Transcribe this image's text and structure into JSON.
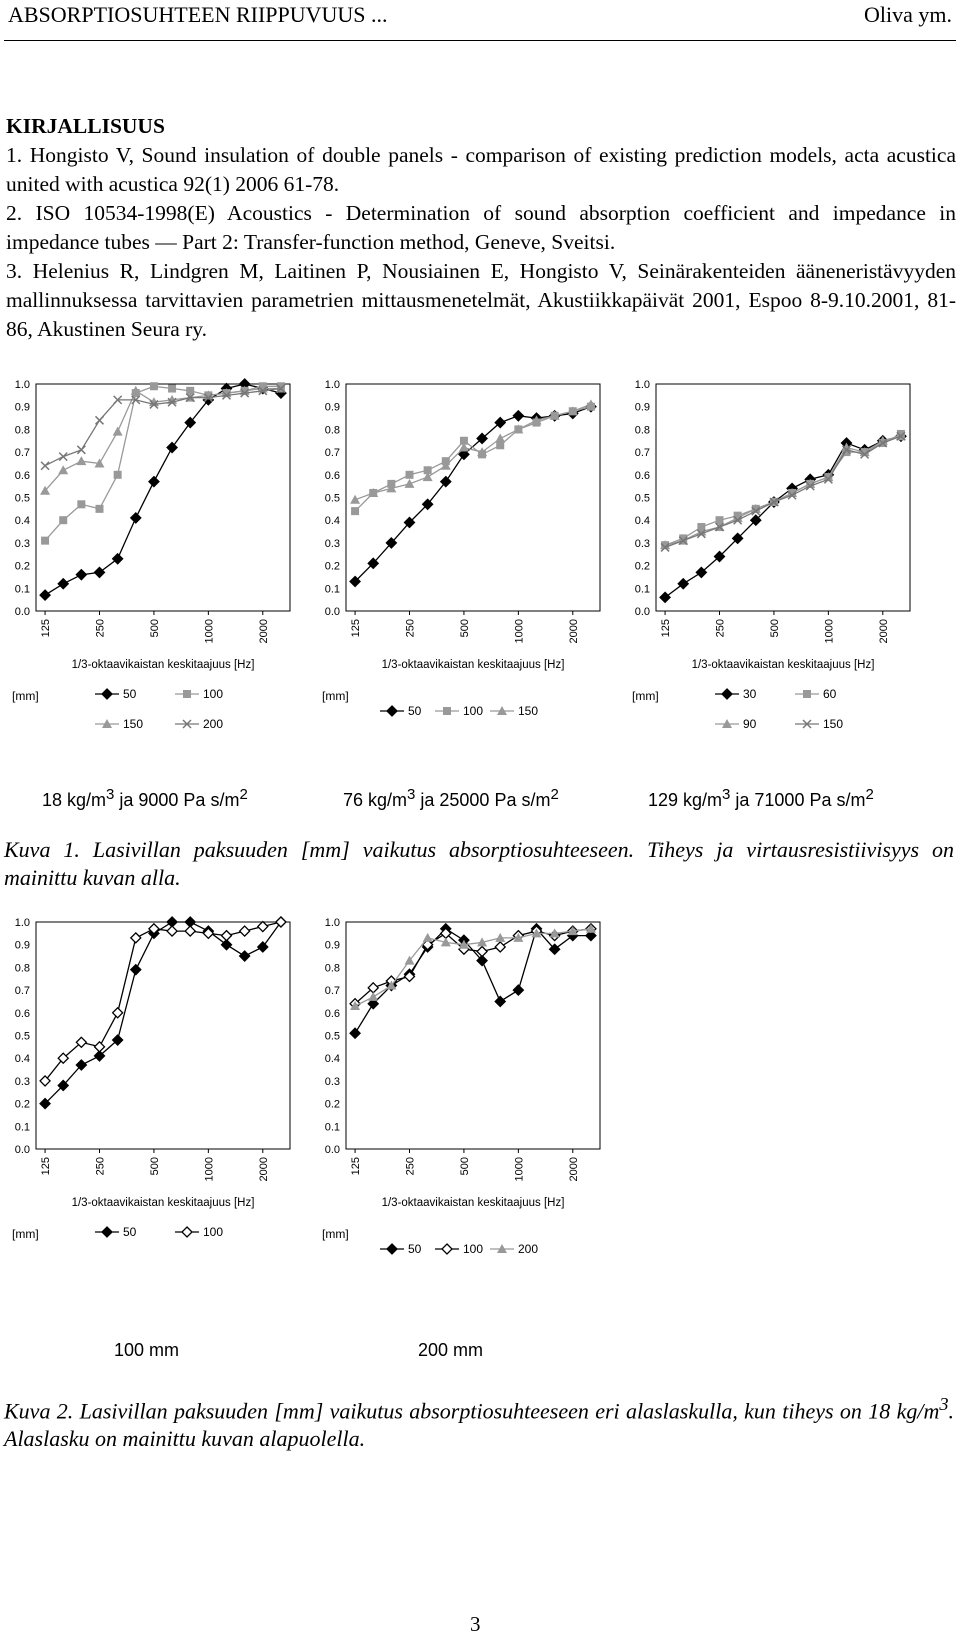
{
  "header": {
    "left": "ABSORPTIOSUHTEEN RIIPPUVUUS ...",
    "right": "Oliva ym."
  },
  "references": {
    "title": "KIRJALLISUUS",
    "items": [
      "1. Hongisto V, Sound insulation of double panels - comparison of existing prediction models, acta acustica united with acustica 92(1) 2006 61-78.",
      "2. ISO 10534-1998(E) Acoustics - Determination of sound absorption coefficient and impedance in impedance tubes — Part 2: Transfer-function method, Geneve, Sveitsi.",
      "3. Helenius R, Lindgren M, Laitinen P, Nousiainen E, Hongisto V, Seinärakenteiden ääneneristävyyden mallinnuksessa tarvittavien parametrien mittausmenetelmät, Akustiikkapäivät 2001, Espoo 8-9.10.2001, 81-86, Akustinen Seura ry."
    ]
  },
  "figure1": {
    "caption": "Kuva 1. Lasivillan paksuuden [mm] vaikutus absorptiosuhteeseen. Tiheys ja virtausresistiivisyys on mainittu kuvan alla.",
    "subtitles": [
      {
        "pre": "18 kg/m",
        "sup1": "3",
        "mid": " ja 9000 Pa s/m",
        "sup2": "2"
      },
      {
        "pre": "76 kg/m",
        "sup1": "3",
        "mid": " ja 25000 Pa s/m",
        "sup2": "2"
      },
      {
        "pre": "129 kg/m",
        "sup1": "3",
        "mid": " ja 71000 Pa s/m",
        "sup2": "2"
      }
    ]
  },
  "figure2": {
    "caption_pre": "Kuva 2. Lasivillan paksuuden [mm] vaikutus absorptiosuhteeseen eri alaslaskulla, kun tiheys on 18 kg/m",
    "caption_sup": "3",
    "caption_post": ". Alaslasku on mainittu kuvan alapuolella.",
    "subtitles": [
      "100 mm",
      "200 mm"
    ]
  },
  "page_number": "3",
  "chart_data": [
    {
      "type": "line",
      "title": "",
      "xlabel": "1/3-oktaavikaistan keskitaajuus [Hz]",
      "ylabel": "",
      "x_tick_labels": [
        "125",
        "250",
        "500",
        "1000",
        "2000"
      ],
      "y_tick_labels": [
        "1.0",
        "0.9",
        "0.8",
        "0.7",
        "0.6",
        "0.5",
        "0.4",
        "0.3",
        "0.2",
        "0.1",
        "0.0"
      ],
      "ylim": [
        0,
        1
      ],
      "legend_unit": "[mm]",
      "legend_rows": [
        [
          0,
          1
        ],
        [
          2,
          3
        ]
      ],
      "series": [
        {
          "name": "50",
          "marker": "diamond",
          "color": "#000000",
          "values": [
            0.07,
            0.12,
            0.16,
            0.17,
            0.23,
            0.41,
            0.57,
            0.72,
            0.83,
            0.93,
            0.98,
            1.0,
            0.98,
            0.96
          ]
        },
        {
          "name": "100",
          "marker": "square",
          "color": "#999999",
          "values": [
            0.31,
            0.4,
            0.47,
            0.45,
            0.6,
            0.96,
            0.99,
            0.98,
            0.97,
            0.95,
            0.96,
            0.97,
            0.99,
            0.99
          ]
        },
        {
          "name": "150",
          "marker": "triangle",
          "color": "#999999",
          "values": [
            0.53,
            0.62,
            0.66,
            0.65,
            0.79,
            0.97,
            0.92,
            0.93,
            0.94,
            0.95,
            0.96,
            0.97,
            0.98,
            0.98
          ]
        },
        {
          "name": "200",
          "marker": "x",
          "color": "#777777",
          "values": [
            0.64,
            0.68,
            0.71,
            0.84,
            0.93,
            0.93,
            0.91,
            0.92,
            0.94,
            0.94,
            0.95,
            0.96,
            0.97,
            0.98
          ]
        }
      ]
    },
    {
      "type": "line",
      "title": "",
      "xlabel": "1/3-oktaavikaistan keskitaajuus [Hz]",
      "ylabel": "",
      "x_tick_labels": [
        "125",
        "250",
        "500",
        "1000",
        "2000"
      ],
      "y_tick_labels": [
        "1.0",
        "0.9",
        "0.8",
        "0.7",
        "0.6",
        "0.5",
        "0.4",
        "0.3",
        "0.2",
        "0.1",
        "0.0"
      ],
      "ylim": [
        0,
        1
      ],
      "legend_unit": "[mm]",
      "legend_rows": [
        [
          0,
          1,
          2
        ]
      ],
      "series": [
        {
          "name": "50",
          "marker": "diamond",
          "color": "#000000",
          "values": [
            0.13,
            0.21,
            0.3,
            0.39,
            0.47,
            0.57,
            0.69,
            0.76,
            0.83,
            0.86,
            0.85,
            0.86,
            0.87,
            0.9
          ]
        },
        {
          "name": "100",
          "marker": "square",
          "color": "#999999",
          "values": [
            0.44,
            0.52,
            0.56,
            0.6,
            0.62,
            0.66,
            0.75,
            0.69,
            0.73,
            0.8,
            0.83,
            0.86,
            0.88,
            0.9
          ]
        },
        {
          "name": "150",
          "marker": "triangle",
          "color": "#999999",
          "values": [
            0.49,
            0.52,
            0.54,
            0.56,
            0.59,
            0.64,
            0.72,
            0.7,
            0.76,
            0.8,
            0.84,
            0.86,
            0.88,
            0.91
          ]
        }
      ]
    },
    {
      "type": "line",
      "title": "",
      "xlabel": "1/3-oktaavikaistan keskitaajuus [Hz]",
      "ylabel": "",
      "x_tick_labels": [
        "125",
        "250",
        "500",
        "1000",
        "2000"
      ],
      "y_tick_labels": [
        "1.0",
        "0.9",
        "0.8",
        "0.7",
        "0.6",
        "0.5",
        "0.4",
        "0.3",
        "0.2",
        "0.1",
        "0.0"
      ],
      "ylim": [
        0,
        1
      ],
      "legend_unit": "[mm]",
      "legend_rows": [
        [
          0,
          1
        ],
        [
          2,
          3
        ]
      ],
      "series": [
        {
          "name": "30",
          "marker": "diamond",
          "color": "#000000",
          "values": [
            0.06,
            0.12,
            0.17,
            0.24,
            0.32,
            0.4,
            0.48,
            0.54,
            0.58,
            0.6,
            0.74,
            0.71,
            0.75,
            0.77
          ]
        },
        {
          "name": "60",
          "marker": "square",
          "color": "#999999",
          "values": [
            0.29,
            0.32,
            0.37,
            0.4,
            0.42,
            0.45,
            0.48,
            0.52,
            0.56,
            0.59,
            0.7,
            0.7,
            0.74,
            0.78
          ]
        },
        {
          "name": "90",
          "marker": "triangle",
          "color": "#999999",
          "values": [
            0.29,
            0.31,
            0.35,
            0.37,
            0.41,
            0.45,
            0.48,
            0.52,
            0.56,
            0.59,
            0.72,
            0.7,
            0.75,
            0.77
          ]
        },
        {
          "name": "150",
          "marker": "x",
          "color": "#777777",
          "values": [
            0.28,
            0.31,
            0.34,
            0.37,
            0.4,
            0.44,
            0.48,
            0.51,
            0.55,
            0.58,
            0.71,
            0.69,
            0.74,
            0.77
          ]
        }
      ]
    },
    {
      "type": "line",
      "title": "",
      "xlabel": "1/3-oktaavikaistan keskitaajuus [Hz]",
      "ylabel": "",
      "x_tick_labels": [
        "125",
        "250",
        "500",
        "1000",
        "2000"
      ],
      "y_tick_labels": [
        "1.0",
        "0.9",
        "0.8",
        "0.7",
        "0.6",
        "0.5",
        "0.4",
        "0.3",
        "0.2",
        "0.1",
        "0.0"
      ],
      "ylim": [
        0,
        1
      ],
      "legend_unit": "[mm]",
      "legend_rows": [
        [
          0,
          1
        ]
      ],
      "series": [
        {
          "name": "50",
          "marker": "diamond",
          "color": "#000000",
          "values": [
            0.2,
            0.28,
            0.37,
            0.41,
            0.48,
            0.79,
            0.95,
            1.0,
            1.0,
            0.96,
            0.9,
            0.85,
            0.89,
            1.0
          ]
        },
        {
          "name": "100",
          "marker": "diamond-open",
          "color": "#000000",
          "values": [
            0.3,
            0.4,
            0.47,
            0.45,
            0.6,
            0.93,
            0.97,
            0.96,
            0.96,
            0.95,
            0.94,
            0.96,
            0.98,
            1.0
          ]
        }
      ]
    },
    {
      "type": "line",
      "title": "",
      "xlabel": "1/3-oktaavikaistan keskitaajuus [Hz]",
      "ylabel": "",
      "x_tick_labels": [
        "125",
        "250",
        "500",
        "1000",
        "2000"
      ],
      "y_tick_labels": [
        "1.0",
        "0.9",
        "0.8",
        "0.7",
        "0.6",
        "0.5",
        "0.4",
        "0.3",
        "0.2",
        "0.1",
        "0.0"
      ],
      "ylim": [
        0,
        1
      ],
      "legend_unit": "[mm]",
      "legend_rows": [
        [
          0,
          1,
          2
        ]
      ],
      "series": [
        {
          "name": "50",
          "marker": "diamond",
          "color": "#000000",
          "values": [
            0.51,
            0.64,
            0.72,
            0.77,
            0.89,
            0.97,
            0.92,
            0.83,
            0.65,
            0.7,
            0.97,
            0.88,
            0.94,
            0.94
          ]
        },
        {
          "name": "100",
          "marker": "diamond-open",
          "color": "#000000",
          "values": [
            0.64,
            0.71,
            0.74,
            0.76,
            0.9,
            0.95,
            0.88,
            0.87,
            0.89,
            0.94,
            0.96,
            0.94,
            0.96,
            0.97
          ]
        },
        {
          "name": "200",
          "marker": "triangle",
          "color": "#999999",
          "values": [
            0.63,
            0.67,
            0.72,
            0.83,
            0.93,
            0.91,
            0.9,
            0.91,
            0.93,
            0.93,
            0.95,
            0.95,
            0.96,
            0.97
          ]
        }
      ]
    }
  ]
}
